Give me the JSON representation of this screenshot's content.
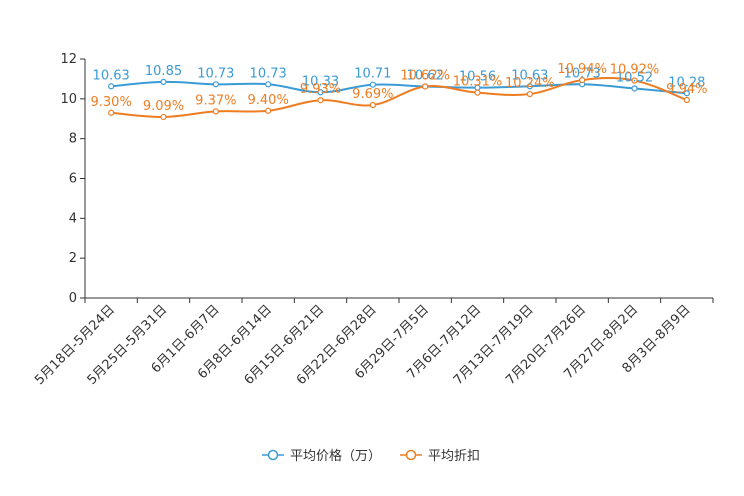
{
  "chart_data": {
    "type": "line",
    "categories": [
      "5月18日-5月24日",
      "5月25日-5月31日",
      "6月1日-6月7日",
      "6月8日-6月14日",
      "6月15日-6月21日",
      "6月22日-6月28日",
      "6月29日-7月5日",
      "7月6日-7月12日",
      "7月13日-7月19日",
      "7月20日-7月26日",
      "7月27日-8月2日",
      "8月3日-8月9日"
    ],
    "series": [
      {
        "name": "平均价格（万）",
        "color": "#3a9bd5",
        "values": [
          10.63,
          10.85,
          10.73,
          10.73,
          10.33,
          10.71,
          10.62,
          10.56,
          10.63,
          10.73,
          10.52,
          10.28
        ],
        "labels": [
          "10.63",
          "10.85",
          "10.73",
          "10.73",
          "10.33",
          "10.71",
          "10.62",
          "10.56",
          "10.63",
          "10.73",
          "10.52",
          "10.28"
        ]
      },
      {
        "name": "平均折扣",
        "color": "#ee7d22",
        "values": [
          9.3,
          9.09,
          9.37,
          9.4,
          9.93,
          9.69,
          10.62,
          10.31,
          10.24,
          10.94,
          10.92,
          9.94
        ],
        "labels": [
          "9.30%",
          "9.09%",
          "9.37%",
          "9.40%",
          "9.93%",
          "9.69%",
          "10.62%",
          "10.31%",
          "10.24%",
          "10.94%",
          "10.92%",
          "9.94%"
        ]
      }
    ],
    "ylim": [
      0,
      12
    ],
    "yticks": [
      "0",
      "2",
      "4",
      "6",
      "8",
      "10",
      "12"
    ],
    "legend_position": "bottom",
    "grid": false
  }
}
